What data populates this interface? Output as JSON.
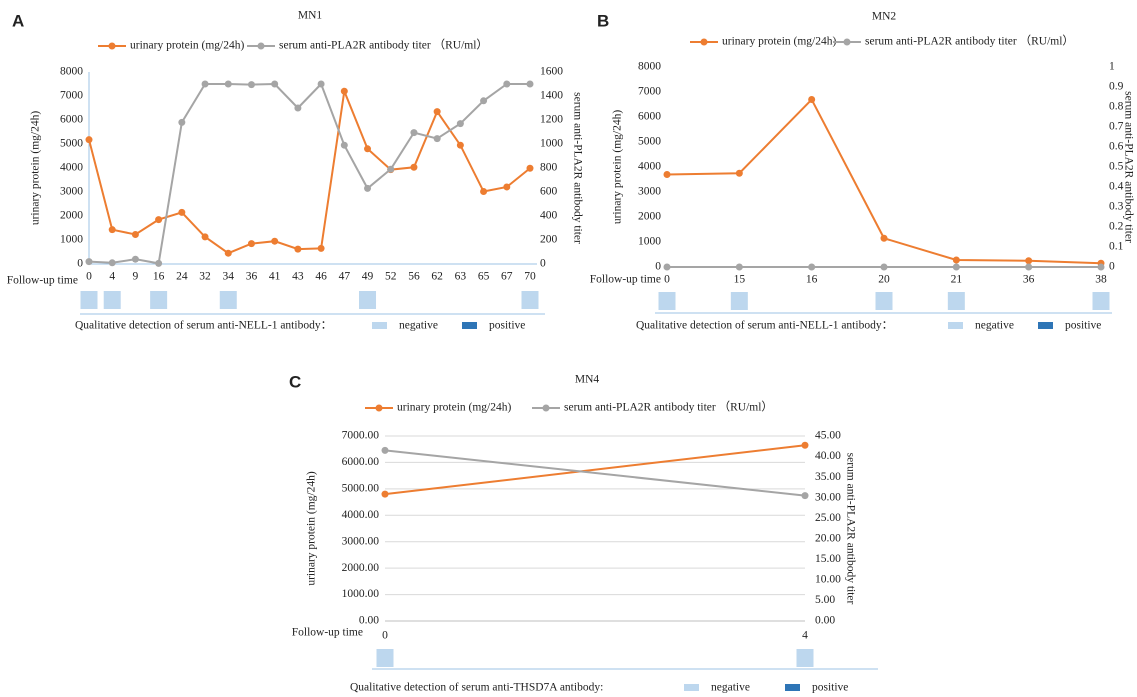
{
  "chart_data": [
    {
      "type": "line",
      "panel": "A",
      "title": "MN1",
      "x_label": "Follow-up time",
      "ylabel": "urinary protein (mg/24h)",
      "y2label": "serum anti-PLA2R antibody titer",
      "categories": [
        "0",
        "4",
        "9",
        "16",
        "24",
        "32",
        "34",
        "36",
        "41",
        "43",
        "46",
        "47",
        "49",
        "52",
        "56",
        "62",
        "63",
        "65",
        "67",
        "70"
      ],
      "series": [
        {
          "name": "urinary protein (mg/24h)",
          "color": "#ed7d31",
          "values": [
            5180,
            1430,
            1230,
            1850,
            2150,
            1130,
            450,
            850,
            950,
            620,
            650,
            7200,
            4800,
            3930,
            4030,
            6350,
            4950,
            3020,
            3210,
            3990
          ]
        },
        {
          "name": "serum anti-PLA2R antibody titer （RU/ml）",
          "color": "#a5a5a5",
          "axis": "y2",
          "values": [
            20,
            10,
            40,
            5,
            1180,
            1500,
            1500,
            1495,
            1500,
            1300,
            1500,
            990,
            630,
            790,
            1095,
            1045,
            1170,
            1360,
            1500,
            1500
          ]
        }
      ],
      "ylim": [
        0,
        8000
      ],
      "yticks": [
        0,
        1000,
        2000,
        3000,
        4000,
        5000,
        6000,
        7000,
        8000
      ],
      "y2lim": [
        0,
        1600
      ],
      "y2ticks": [
        0,
        200,
        400,
        600,
        800,
        1000,
        1200,
        1400,
        1600
      ],
      "grid": false,
      "detection": {
        "label": "Qualitative detection of serum anti-NELL-1 antibody：",
        "legend": [
          {
            "name": "negative",
            "color": "#bdd7ee"
          },
          {
            "name": "positive",
            "color": "#2e75b6"
          }
        ],
        "results": [
          "negative",
          "negative",
          null,
          "negative",
          null,
          null,
          "negative",
          null,
          null,
          null,
          null,
          null,
          "negative",
          null,
          null,
          null,
          null,
          null,
          null,
          "negative"
        ]
      }
    },
    {
      "type": "line",
      "panel": "B",
      "title": "MN2",
      "x_label": "Follow-up time",
      "ylabel": "urinary protein (mg/24h)",
      "y2label": "serum anti-PLA2R antibody titer",
      "categories": [
        "0",
        "15",
        "16",
        "20",
        "21",
        "36",
        "38"
      ],
      "series": [
        {
          "name": "urinary protein (mg/24h)",
          "color": "#ed7d31",
          "values": [
            3700,
            3750,
            6700,
            1150,
            280,
            250,
            150
          ]
        },
        {
          "name": "serum anti-PLA2R antibody titer （RU/ml）",
          "color": "#a5a5a5",
          "axis": "y2",
          "values": [
            0,
            0,
            0,
            0,
            0,
            0,
            0
          ]
        }
      ],
      "ylim": [
        0,
        8000
      ],
      "yticks": [
        0,
        1000,
        2000,
        3000,
        4000,
        5000,
        6000,
        7000,
        8000
      ],
      "y2lim": [
        0,
        1
      ],
      "y2ticks": [
        0,
        0.1,
        0.2,
        0.3,
        0.4,
        0.5,
        0.6,
        0.7,
        0.8,
        0.9,
        1
      ],
      "grid": false,
      "detection": {
        "label": "Qualitative detection of serum anti-NELL-1 antibody：",
        "legend": [
          {
            "name": "negative",
            "color": "#bdd7ee"
          },
          {
            "name": "positive",
            "color": "#2e75b6"
          }
        ],
        "results": [
          "negative",
          "negative",
          null,
          "negative",
          "negative",
          null,
          "negative"
        ]
      }
    },
    {
      "type": "line",
      "panel": "C",
      "title": "MN4",
      "x_label": "Follow-up time",
      "ylabel": "urinary protein (mg/24h)",
      "y2label": "serum anti-PLA2R antibody titer",
      "categories": [
        "0",
        "4"
      ],
      "series": [
        {
          "name": "urinary protein (mg/24h)",
          "color": "#ed7d31",
          "values": [
            4800,
            6650
          ]
        },
        {
          "name": "serum anti-PLA2R antibody titer （RU/ml）",
          "color": "#a5a5a5",
          "axis": "y2",
          "values": [
            41.5,
            30.5
          ]
        }
      ],
      "ylim": [
        0,
        7000
      ],
      "yticks": [
        {
          "value": 0,
          "label": "0.00"
        },
        {
          "value": 1000,
          "label": "1000.00"
        },
        {
          "value": 2000,
          "label": "2000.00"
        },
        {
          "value": 3000,
          "label": "3000.00"
        },
        {
          "value": 4000,
          "label": "4000.00"
        },
        {
          "value": 5000,
          "label": "5000.00"
        },
        {
          "value": 6000,
          "label": "6000.00"
        },
        {
          "value": 7000,
          "label": "7000.00"
        }
      ],
      "y2lim": [
        0,
        45
      ],
      "y2ticks": [
        {
          "value": 0,
          "label": "0.00"
        },
        {
          "value": 5,
          "label": "5.00"
        },
        {
          "value": 10,
          "label": "10.00"
        },
        {
          "value": 15,
          "label": "15.00"
        },
        {
          "value": 20,
          "label": "20.00"
        },
        {
          "value": 25,
          "label": "25.00"
        },
        {
          "value": 30,
          "label": "30.00"
        },
        {
          "value": 35,
          "label": "35.00"
        },
        {
          "value": 40,
          "label": "40.00"
        },
        {
          "value": 45,
          "label": "45.00"
        }
      ],
      "grid": true,
      "detection": {
        "label": "Qualitative detection of serum anti-THSD7A antibody:",
        "legend": [
          {
            "name": "negative",
            "color": "#bdd7ee"
          },
          {
            "name": "positive",
            "color": "#2e75b6"
          }
        ],
        "results": [
          "negative",
          "negative"
        ]
      }
    }
  ]
}
